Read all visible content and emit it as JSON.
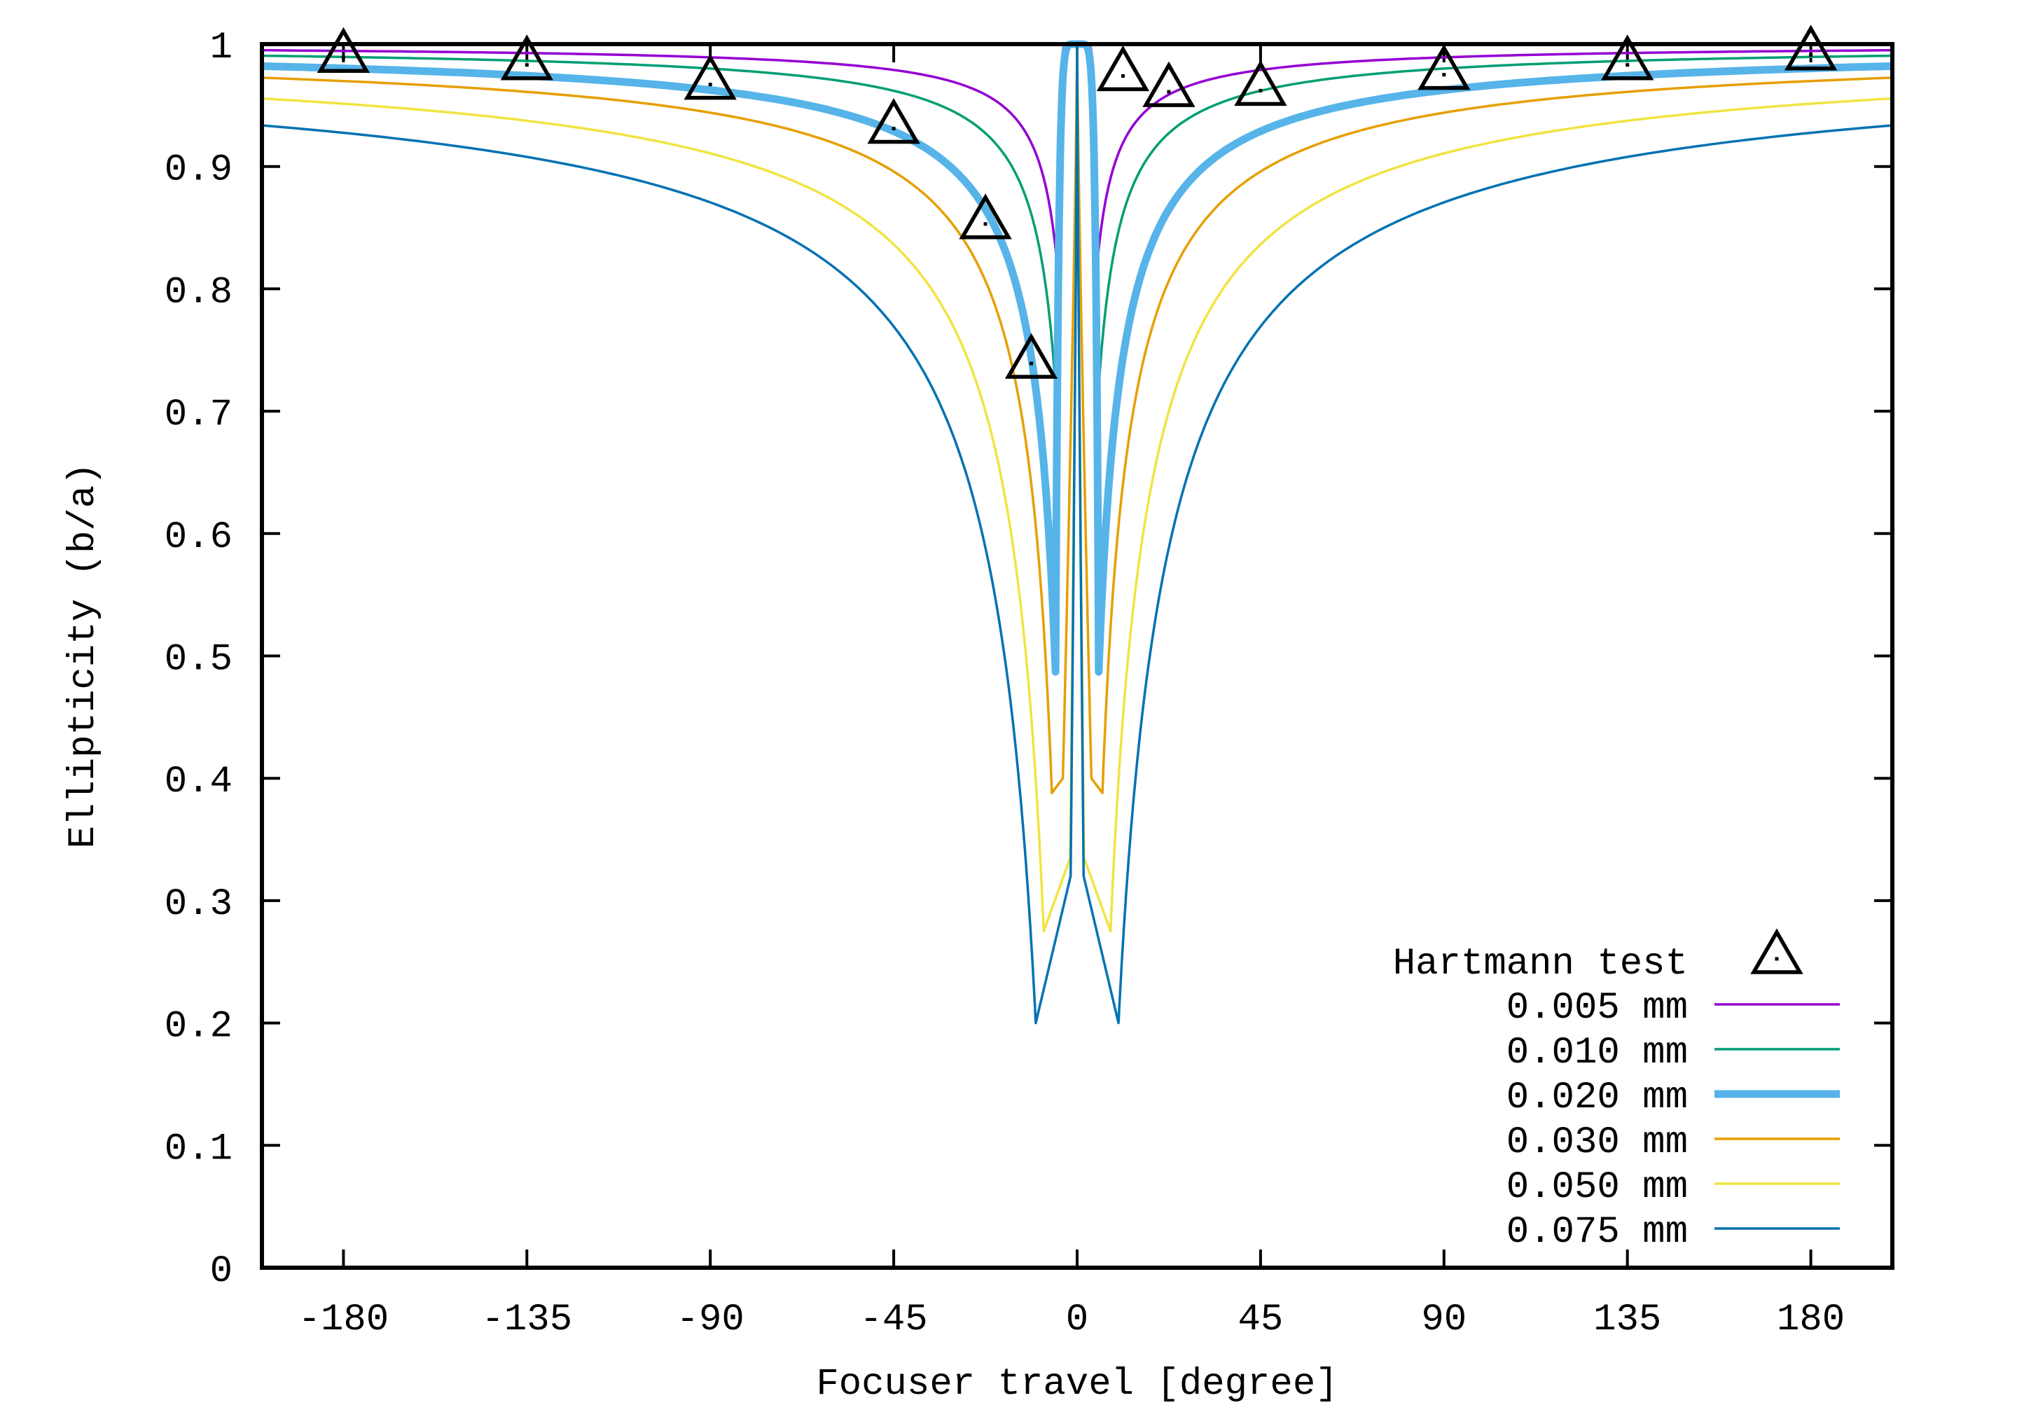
{
  "chart_data": {
    "type": "line",
    "title": "",
    "xlabel": "Focuser travel [degree]",
    "ylabel": "Ellipticity (b/a)",
    "xlim": [
      -200,
      200
    ],
    "ylim": [
      0,
      1
    ],
    "xticks": [
      -180,
      -135,
      -90,
      -45,
      0,
      45,
      90,
      135,
      180
    ],
    "yticks": [
      0,
      0.1,
      0.2,
      0.3,
      0.4,
      0.5,
      0.6,
      0.7,
      0.8,
      0.9,
      1
    ],
    "grid": false,
    "background_color": "#ffffff",
    "axis_color": "#000000",
    "legend": {
      "position": "inside-bottom-right",
      "entries": [
        "Hartmann test",
        "0.005 mm",
        "0.010 mm",
        "0.020 mm",
        "0.030 mm",
        "0.050 mm",
        "0.075 mm"
      ]
    },
    "scatter_series": {
      "name": "Hartmann test",
      "marker": "open-triangle-up-with-center-dot",
      "color": "#000000",
      "points": [
        [
          -180,
          0.989
        ],
        [
          -135,
          0.983
        ],
        [
          -90,
          0.967
        ],
        [
          -45,
          0.931
        ],
        [
          -22.5,
          0.853
        ],
        [
          -11.25,
          0.739
        ],
        [
          11.25,
          0.974
        ],
        [
          22.5,
          0.961
        ],
        [
          45,
          0.962
        ],
        [
          90,
          0.975
        ],
        [
          135,
          0.983
        ],
        [
          180,
          0.991
        ]
      ]
    },
    "curve_series": [
      {
        "name": "0.005 mm",
        "color": "#9400d3",
        "line_width": 3.5,
        "dip_min_value": 0.8,
        "dip_position_deg": 4.4,
        "value_at_plot_edge": 0.995,
        "center_peak_value": 1.0,
        "inner": {
          "type": "plunge",
          "p": 15
        }
      },
      {
        "name": "0.010 mm",
        "color": "#009e73",
        "line_width": 3.5,
        "dip_min_value": 0.68,
        "dip_position_deg": 4.6,
        "value_at_plot_edge": 0.9905,
        "center_peak_value": 1.0,
        "inner": {
          "type": "plunge",
          "p": 13
        }
      },
      {
        "name": "0.020 mm",
        "color": "#56b4e9",
        "line_width": 11,
        "dip_min_value": 0.487,
        "dip_position_deg": 5.3,
        "value_at_plot_edge": 0.982,
        "center_peak_value": 1.0,
        "inner": {
          "type": "plunge",
          "p": 7
        }
      },
      {
        "name": "0.030 mm",
        "color": "#e69f00",
        "line_width": 3.5,
        "dip_min_value": 0.388,
        "dip_position_deg": 6.2,
        "value_at_plot_edge": 0.9725,
        "center_peak_value": 1.0,
        "inner": {
          "type": "spike",
          "x_spike": 3.5,
          "v_knee": 0.4,
          "s": 0.8
        }
      },
      {
        "name": "0.050 mm",
        "color": "#f0e442",
        "line_width": 3.5,
        "dip_min_value": 0.275,
        "dip_position_deg": 8.2,
        "value_at_plot_edge": 0.9555,
        "center_peak_value": 1.0,
        "inner": {
          "type": "spike",
          "x_spike": 1.7,
          "v_knee": 0.335,
          "s": 0.8
        }
      },
      {
        "name": "0.075 mm",
        "color": "#0072b2",
        "line_width": 3.5,
        "dip_min_value": 0.2,
        "dip_position_deg": 10.15,
        "value_at_plot_edge": 0.9335,
        "center_peak_value": 1.0,
        "inner": {
          "type": "spike",
          "x_spike": 1.6,
          "v_knee": 0.32,
          "s": 0.8
        }
      }
    ]
  }
}
